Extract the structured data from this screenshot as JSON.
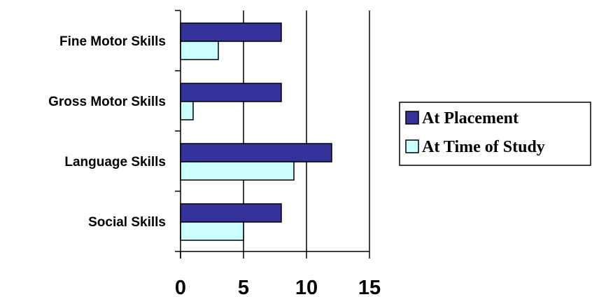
{
  "chart_data": {
    "type": "bar",
    "orientation": "horizontal",
    "categories": [
      "Fine Motor Skills",
      "Gross Motor Skills",
      "Language Skills",
      "Social Skills"
    ],
    "series": [
      {
        "name": "At Placement",
        "values": [
          8,
          8,
          12,
          8
        ],
        "color": "#333399"
      },
      {
        "name": "At Time of Study",
        "values": [
          3,
          1,
          9,
          5
        ],
        "color": "#ccffff"
      }
    ],
    "xticks": [
      "0",
      "5",
      "10",
      "15"
    ],
    "xlim": [
      0,
      15
    ],
    "title": "",
    "xlabel": "",
    "ylabel": "",
    "grid": true,
    "legend_position": "right"
  }
}
